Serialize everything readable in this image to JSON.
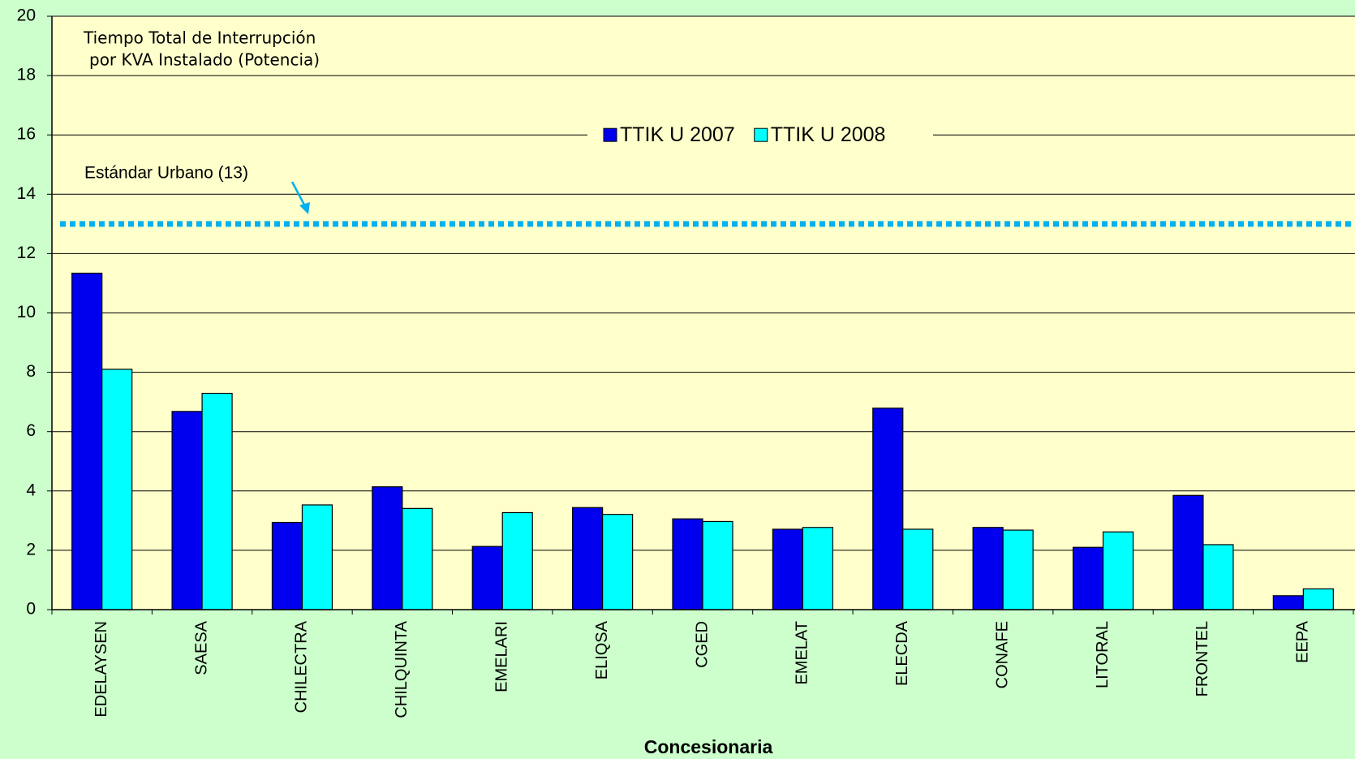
{
  "chart_data": {
    "type": "bar",
    "title": [
      "Tiempo Total de Interrupción",
      "por KVA Instalado (Potencia)"
    ],
    "x_label": "Concesionaria",
    "categories": [
      "EDELAYSEN",
      "SAESA",
      "CHILECTRA",
      "CHILQUINTA",
      "EMELARI",
      "ELIQSA",
      "CGED",
      "EMELAT",
      "ELECDA",
      "CONAFE",
      "LITORAL",
      "FRONTEL",
      "EEPA"
    ],
    "series": [
      {
        "name": "TTIK U 2007",
        "color": "#0000ee",
        "values": [
          11.34,
          6.68,
          2.94,
          4.14,
          2.13,
          3.44,
          3.06,
          2.71,
          6.79,
          2.77,
          2.1,
          3.85,
          0.47
        ]
      },
      {
        "name": "TTIK U 2008",
        "color": "#00ffff",
        "values": [
          8.1,
          7.29,
          3.53,
          3.41,
          3.27,
          3.21,
          2.97,
          2.77,
          2.71,
          2.68,
          2.62,
          2.19,
          0.7
        ]
      }
    ],
    "ylim": [
      0,
      20
    ],
    "yticks": [
      0,
      2,
      4,
      6,
      8,
      10,
      12,
      14,
      16,
      18,
      20
    ],
    "grid": true,
    "legend": "top",
    "reference_line": {
      "value": 13,
      "label": "Estándar Urbano (13)",
      "color": "#00b0f0"
    }
  }
}
